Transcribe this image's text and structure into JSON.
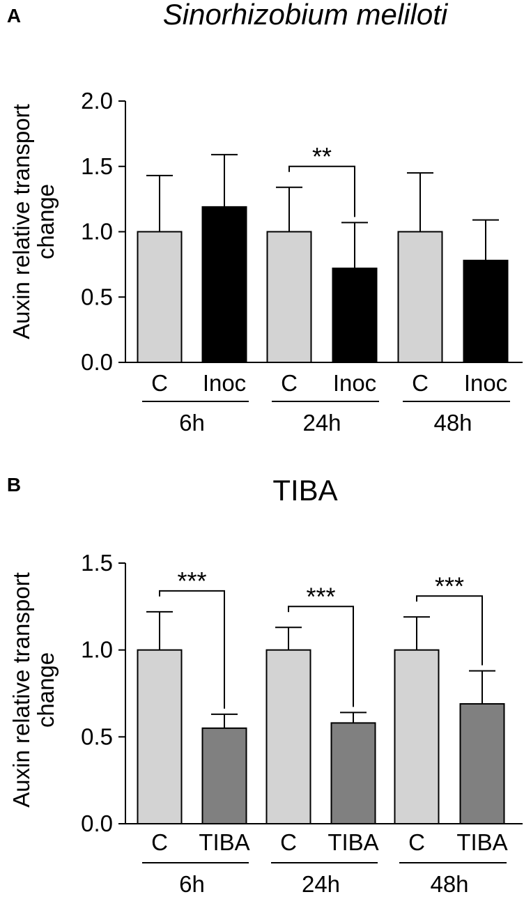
{
  "chart_data": [
    {
      "panel_letter": "A",
      "type": "bar",
      "title": "Sinorhizobium meliloti",
      "title_italic": true,
      "ylabel_line1": "Auxin relative transport",
      "ylabel_line2": "change",
      "ylim": [
        0,
        2.0
      ],
      "yticks": [
        0.0,
        0.5,
        1.0,
        1.5,
        2.0
      ],
      "ytick_labels": [
        "0.0",
        "0.5",
        "1.0",
        "1.5",
        "2.0"
      ],
      "groups": [
        "6h",
        "24h",
        "48h"
      ],
      "categories": [
        "C",
        "Inoc",
        "C",
        "Inoc",
        "C",
        "Inoc"
      ],
      "values": [
        1.0,
        1.19,
        1.0,
        0.72,
        1.0,
        0.78
      ],
      "errors": [
        0.43,
        0.4,
        0.34,
        0.35,
        0.45,
        0.31
      ],
      "colors": [
        "#d3d3d3",
        "#000000",
        "#d3d3d3",
        "#000000",
        "#d3d3d3",
        "#000000"
      ],
      "significance": [
        {
          "group": "24h",
          "label": "**"
        }
      ]
    },
    {
      "panel_letter": "B",
      "type": "bar",
      "title": "TIBA",
      "title_italic": false,
      "ylabel_line1": "Auxin relative transport",
      "ylabel_line2": "change",
      "ylim": [
        0,
        1.5
      ],
      "yticks": [
        0.0,
        0.5,
        1.0,
        1.5
      ],
      "ytick_labels": [
        "0.0",
        "0.5",
        "1.0",
        "1.5"
      ],
      "groups": [
        "6h",
        "24h",
        "48h"
      ],
      "categories": [
        "C",
        "TIBA",
        "C",
        "TIBA",
        "C",
        "TIBA"
      ],
      "values": [
        1.0,
        0.55,
        1.0,
        0.58,
        1.0,
        0.69
      ],
      "errors": [
        0.22,
        0.08,
        0.13,
        0.06,
        0.19,
        0.19
      ],
      "colors": [
        "#d3d3d3",
        "#808080",
        "#d3d3d3",
        "#808080",
        "#d3d3d3",
        "#808080"
      ],
      "significance": [
        {
          "group": "6h",
          "label": "***"
        },
        {
          "group": "24h",
          "label": "***"
        },
        {
          "group": "48h",
          "label": "***"
        }
      ]
    }
  ]
}
